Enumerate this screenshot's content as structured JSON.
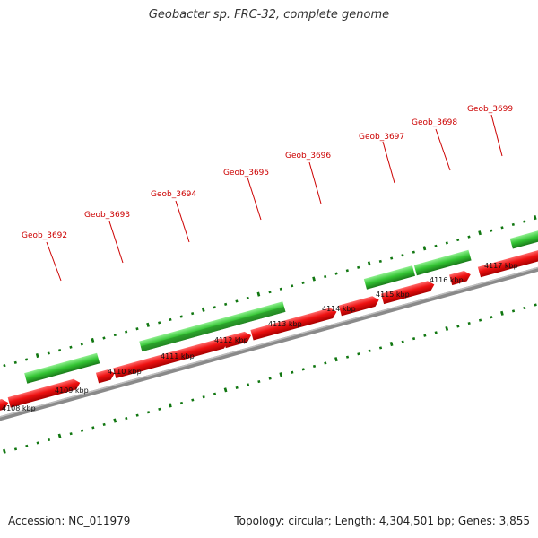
{
  "title": "Geobacter sp. FRC-32, complete genome",
  "footer": {
    "accession": "Accession: NC_011979",
    "summary": "Topology: circular; Length: 4,304,501 bp; Genes: 3,855"
  },
  "colors": {
    "reverse_strand_gene": "#22bb22",
    "forward_strand_gene": "#ee1111",
    "gene_label": "#cc0000",
    "backbone": "#888888",
    "tick": "#117711"
  },
  "scale": {
    "unit": "kbp",
    "labels": [
      "4108 kbp",
      "4109 kbp",
      "4110 kbp",
      "4111 kbp",
      "4112 kbp",
      "4113 kbp",
      "4114 kbp",
      "4115 kbp",
      "4116 kbp",
      "4117 kbp"
    ]
  },
  "genes": [
    {
      "label": "Geob_3692"
    },
    {
      "label": "Geob_3693"
    },
    {
      "label": "Geob_3694"
    },
    {
      "label": "Geob_3695"
    },
    {
      "label": "Geob_3696"
    },
    {
      "label": "Geob_3697"
    },
    {
      "label": "Geob_3698"
    },
    {
      "label": "Geob_3699"
    }
  ]
}
